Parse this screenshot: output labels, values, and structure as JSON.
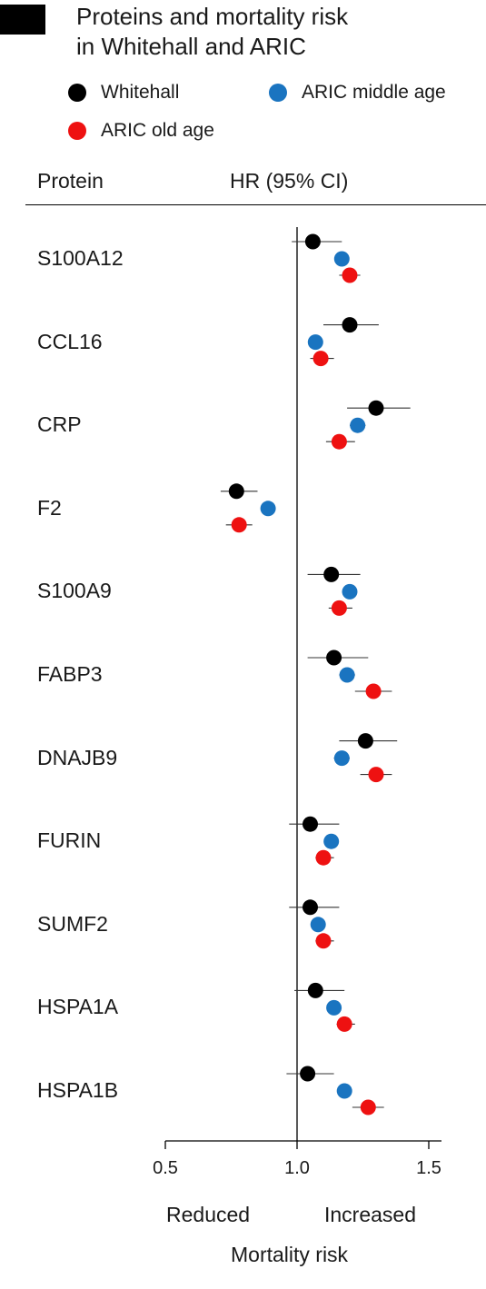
{
  "title_lines": [
    "Proteins and mortality risk",
    "in Whitehall and ARIC"
  ],
  "legend": [
    {
      "label": "Whitehall",
      "color": "#000000"
    },
    {
      "label": "ARIC middle age",
      "color": "#1a74c0"
    },
    {
      "label": "ARIC old age",
      "color": "#ee1111"
    }
  ],
  "headers": {
    "protein": "Protein",
    "hr": "HR (95% CI)"
  },
  "axis_captions": {
    "left": "Reduced",
    "right": "Increased",
    "xlabel": "Mortality risk"
  },
  "chart_data": {
    "type": "scatter",
    "x_axis": {
      "range": [
        0.5,
        1.55
      ],
      "ticks": [
        0.5,
        1.0,
        1.5
      ],
      "tick_labels": [
        "0.5",
        "1.0",
        "1.5"
      ],
      "reference_line": 1.0
    },
    "categories": [
      "S100A12",
      "CCL16",
      "CRP",
      "F2",
      "S100A9",
      "FABP3",
      "DNAJB9",
      "FURIN",
      "SUMF2",
      "HSPA1A",
      "HSPA1B"
    ],
    "series": [
      {
        "name": "Whitehall",
        "color": "#000000",
        "hr": [
          1.06,
          1.2,
          1.3,
          0.77,
          1.13,
          1.14,
          1.26,
          1.05,
          1.05,
          1.07,
          1.04
        ],
        "ci_low": [
          0.98,
          1.1,
          1.19,
          0.71,
          1.04,
          1.04,
          1.16,
          0.97,
          0.97,
          0.99,
          0.96
        ],
        "ci_high": [
          1.17,
          1.31,
          1.43,
          0.85,
          1.24,
          1.27,
          1.38,
          1.16,
          1.16,
          1.18,
          1.14
        ]
      },
      {
        "name": "ARIC middle age",
        "color": "#1a74c0",
        "hr": [
          1.17,
          1.07,
          1.23,
          0.89,
          1.2,
          1.19,
          1.17,
          1.13,
          1.08,
          1.14,
          1.18
        ],
        "ci_low": [
          1.15,
          1.05,
          1.2,
          0.87,
          1.18,
          1.16,
          1.14,
          1.11,
          1.06,
          1.12,
          1.16
        ],
        "ci_high": [
          1.19,
          1.09,
          1.26,
          0.91,
          1.22,
          1.22,
          1.2,
          1.15,
          1.1,
          1.16,
          1.2
        ]
      },
      {
        "name": "ARIC old age",
        "color": "#ee1111",
        "hr": [
          1.2,
          1.09,
          1.16,
          0.78,
          1.16,
          1.29,
          1.3,
          1.1,
          1.1,
          1.18,
          1.27
        ],
        "ci_low": [
          1.16,
          1.05,
          1.11,
          0.73,
          1.12,
          1.22,
          1.24,
          1.07,
          1.07,
          1.15,
          1.21
        ],
        "ci_high": [
          1.24,
          1.14,
          1.22,
          0.83,
          1.21,
          1.36,
          1.36,
          1.14,
          1.14,
          1.22,
          1.33
        ]
      }
    ]
  }
}
